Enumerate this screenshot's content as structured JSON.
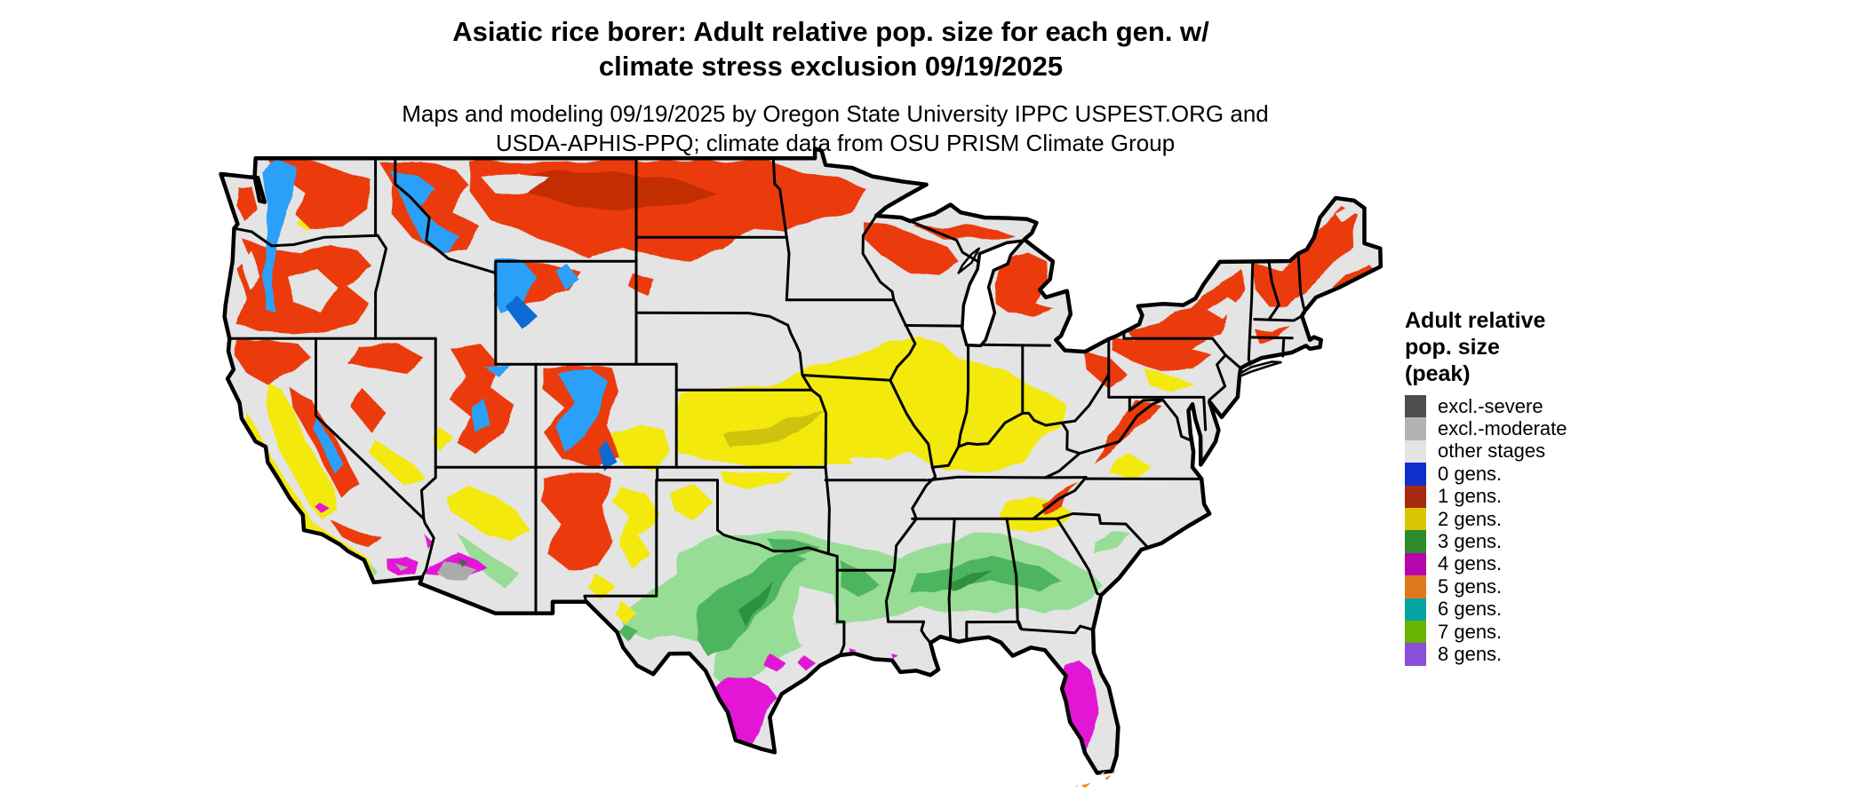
{
  "title": {
    "line1": "Asiatic rice borer: Adult relative pop. size for each gen. w/",
    "line2": "climate stress exclusion 09/19/2025"
  },
  "subtitle": {
    "line1": "Maps and modeling 09/19/2025 by Oregon State University IPPC USPEST.ORG and",
    "line2": "USDA-APHIS-PPQ; climate data from OSU PRISM Climate Group"
  },
  "legend": {
    "title_lines": [
      "Adult relative",
      "pop. size",
      "(peak)"
    ],
    "items": [
      {
        "label": "excl.-severe",
        "color": "#4d4d4d"
      },
      {
        "label": "excl.-moderate",
        "color": "#b3b3b3"
      },
      {
        "label": "other stages",
        "color": "#e4e4e4"
      },
      {
        "label": "0 gens.",
        "color": "#1030cc"
      },
      {
        "label": "1 gens.",
        "color": "#a62a10"
      },
      {
        "label": "2 gens.",
        "color": "#d8c400"
      },
      {
        "label": "3 gens.",
        "color": "#2e8b2e"
      },
      {
        "label": "4 gens.",
        "color": "#b505ab"
      },
      {
        "label": "5 gens.",
        "color": "#e0791c"
      },
      {
        "label": "6 gens.",
        "color": "#06a3a3"
      },
      {
        "label": "7 gens.",
        "color": "#67b405"
      },
      {
        "label": "8 gens.",
        "color": "#8a4fd8"
      }
    ]
  },
  "map": {
    "type": "choropleth-raster",
    "geography": "Continental United States with state boundaries",
    "background": "#ffffff",
    "border_color": "#000000",
    "palette": {
      "base": "#e4e4e4",
      "red": "#eb3b0c",
      "red2": "#c32f05",
      "blue": "#2aa0f8",
      "blue2": "#0c6ad4",
      "yellow": "#f3e90e",
      "yellow2": "#cfc307",
      "gl": "#97dd96",
      "gd": "#4db45e",
      "gdd": "#2f9140",
      "mag": "#e316d6",
      "org": "#ef8d1f",
      "gmod": "#ababab",
      "gsev": "#5a5a5a",
      "keys": "#d4d4d4"
    },
    "regions_depicted": [
      {
        "region": "Pacific Northwest / northern Rockies mountains (WA, OR, ID, W MT)",
        "value": "1 gens. with 0 gens. at high elevations"
      },
      {
        "region": "Northern plains and upper Midwest (E MT, ND, N SD, N MN, N WI, N-C MI)",
        "value": "1 gens."
      },
      {
        "region": "Northeast uplands (NY, N PA, VT, NH, ME, W MA/CT)",
        "value": "1 gens."
      },
      {
        "region": "Utah/Colorado/New Mexico mountains, Sierra Nevada, N California, N Nevada",
        "value": "1 gens. with 0 gens. cores"
      },
      {
        "region": "Central band (KS, N MO, S IA, C IL, S IN, KY, SW OH, mid-Appalachians, E NM, SE CO, N GA, CA Central Valley and coast)",
        "value": "2 gens."
      },
      {
        "region": "Southern band (C TX, S OK, S AR, N LA, C MS, C AL, C GA, AZ uplands)",
        "value": "3 gens."
      },
      {
        "region": "South Texas, Central/South Florida, SW Arizona, SE California deserts, spots on LA/TX coast",
        "value": "4 gens."
      },
      {
        "region": "Florida Keys",
        "value": "5 gens."
      },
      {
        "region": "Hottest SW Arizona / SE California desert cores",
        "value": "excl.-moderate and excl.-severe"
      },
      {
        "region": "Remaining plains, valleys and coastal plains",
        "value": "other stages"
      }
    ]
  }
}
